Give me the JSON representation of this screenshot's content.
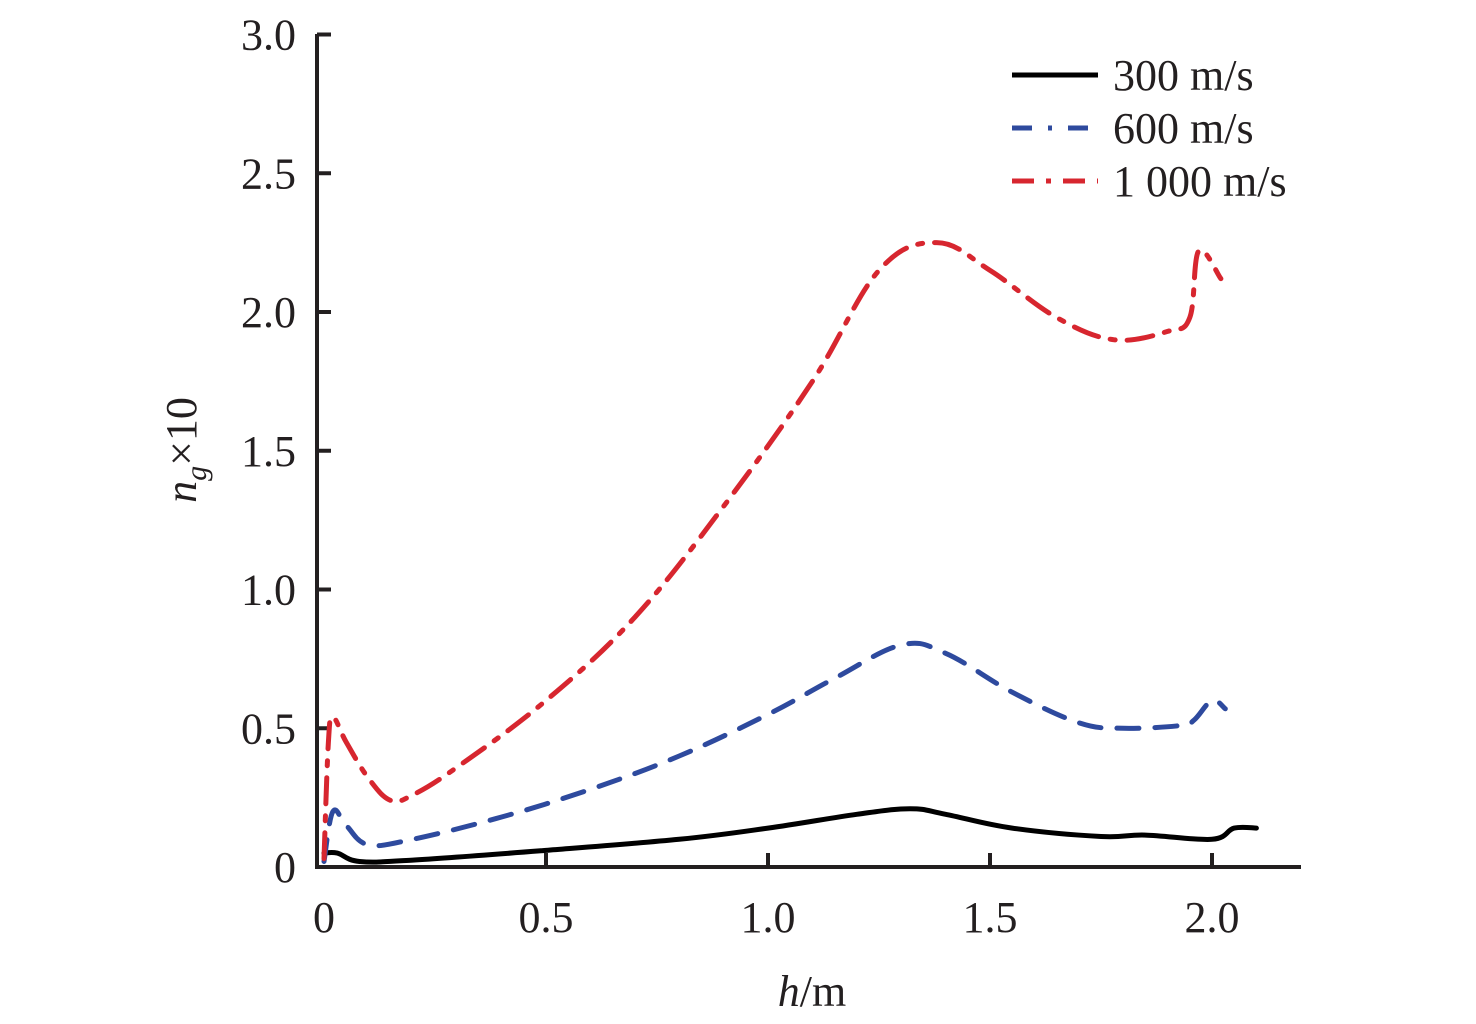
{
  "chart_data": {
    "type": "line",
    "title": "",
    "xlabel": "h/m",
    "xlabel_italic": "h",
    "xlabel_unit": "/m",
    "ylabel": "n_g×10",
    "ylabel_main": "n",
    "ylabel_sub": "g",
    "ylabel_suffix": "×10",
    "xlim": [
      0,
      2.2
    ],
    "ylim": [
      0,
      3.0
    ],
    "xticks": [
      0,
      0.5,
      1.0,
      1.5,
      2.0
    ],
    "xtick_labels": [
      "0",
      "0.5",
      "1.0",
      "1.5",
      "2.0"
    ],
    "yticks": [
      0,
      0.5,
      1.0,
      1.5,
      2.0,
      2.5,
      3.0
    ],
    "ytick_labels": [
      "0",
      "0.5",
      "1.0",
      "1.5",
      "2.0",
      "2.5",
      "3.0"
    ],
    "grid": false,
    "legend_position": "top-right",
    "series": [
      {
        "name": "300 m/s",
        "color": "#000000",
        "style": "solid",
        "x": [
          0,
          0.03,
          0.08,
          0.2,
          0.5,
          0.8,
          1.0,
          1.2,
          1.32,
          1.4,
          1.55,
          1.75,
          1.85,
          2.0,
          2.05,
          2.1
        ],
        "y": [
          0.05,
          0.05,
          0.02,
          0.025,
          0.06,
          0.1,
          0.14,
          0.19,
          0.21,
          0.19,
          0.14,
          0.11,
          0.115,
          0.1,
          0.14,
          0.14
        ]
      },
      {
        "name": "600 m/s",
        "color": "#2e4a9e",
        "style": "dashed",
        "x": [
          0,
          0.02,
          0.05,
          0.1,
          0.2,
          0.4,
          0.6,
          0.8,
          1.0,
          1.15,
          1.3,
          1.4,
          1.55,
          1.7,
          1.8,
          1.93,
          1.96,
          2.0,
          2.03
        ],
        "y": [
          0.02,
          0.2,
          0.15,
          0.08,
          0.1,
          0.18,
          0.28,
          0.4,
          0.55,
          0.68,
          0.8,
          0.77,
          0.63,
          0.52,
          0.5,
          0.51,
          0.53,
          0.6,
          0.57
        ]
      },
      {
        "name": "1 000 m/s",
        "color": "#d7262f",
        "style": "dashdot",
        "x": [
          0,
          0.01,
          0.02,
          0.05,
          0.1,
          0.15,
          0.2,
          0.3,
          0.5,
          0.7,
          0.9,
          1.1,
          1.25,
          1.38,
          1.5,
          1.65,
          1.78,
          1.9,
          1.95,
          1.97,
          2.02
        ],
        "y": [
          0.03,
          0.45,
          0.54,
          0.45,
          0.32,
          0.24,
          0.26,
          0.36,
          0.6,
          0.9,
          1.3,
          1.75,
          2.15,
          2.25,
          2.15,
          1.98,
          1.9,
          1.93,
          1.98,
          2.22,
          2.12
        ]
      }
    ]
  }
}
